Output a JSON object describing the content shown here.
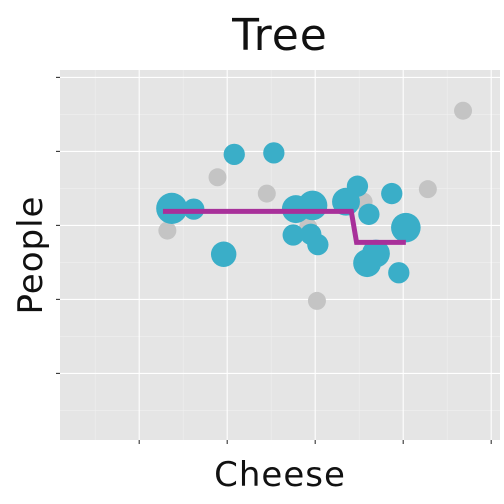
{
  "chart_data": {
    "type": "scatter",
    "title": "Tree",
    "xlabel": "Cheese",
    "ylabel": "People",
    "xlim": [
      -0.9,
      4.1
    ],
    "ylim": [
      -0.9,
      4.1
    ],
    "grid": true,
    "legend": "none",
    "colors": {
      "panel": "#e5e5e5",
      "grid_major": "#ffffff",
      "grid_minor": "#f0f0f0",
      "background_points": "#c4c4c4",
      "highlight_points": "#3aaec8",
      "step_line": "#a8309a",
      "tick": "#333333"
    },
    "series": [
      {
        "role": "background",
        "points": [
          {
            "x": 0.32,
            "y": 1.93,
            "size": 1
          },
          {
            "x": 0.89,
            "y": 2.65,
            "size": 1
          },
          {
            "x": 1.45,
            "y": 2.43,
            "size": 1
          },
          {
            "x": 1.92,
            "y": 1.98,
            "size": 1
          },
          {
            "x": 2.55,
            "y": 2.32,
            "size": 1
          },
          {
            "x": 3.28,
            "y": 2.49,
            "size": 1
          },
          {
            "x": 3.68,
            "y": 3.55,
            "size": 1
          },
          {
            "x": 2.02,
            "y": 0.98,
            "size": 1
          }
        ]
      },
      {
        "role": "highlight",
        "points": [
          {
            "x": 0.37,
            "y": 2.23,
            "size": 3
          },
          {
            "x": 0.62,
            "y": 2.22,
            "size": 1.4
          },
          {
            "x": 1.08,
            "y": 2.96,
            "size": 1.4
          },
          {
            "x": 1.53,
            "y": 2.98,
            "size": 1.4
          },
          {
            "x": 0.96,
            "y": 1.61,
            "size": 2
          },
          {
            "x": 1.78,
            "y": 2.22,
            "size": 2.4
          },
          {
            "x": 1.97,
            "y": 2.27,
            "size": 2.7
          },
          {
            "x": 2.35,
            "y": 2.32,
            "size": 2.4
          },
          {
            "x": 2.48,
            "y": 2.53,
            "size": 1.4
          },
          {
            "x": 2.61,
            "y": 2.15,
            "size": 1.4
          },
          {
            "x": 2.87,
            "y": 2.43,
            "size": 1.4
          },
          {
            "x": 1.75,
            "y": 1.87,
            "size": 1.4
          },
          {
            "x": 1.95,
            "y": 1.88,
            "size": 1.4
          },
          {
            "x": 2.03,
            "y": 1.74,
            "size": 1.4
          },
          {
            "x": 2.69,
            "y": 1.62,
            "size": 2.4
          },
          {
            "x": 2.59,
            "y": 1.49,
            "size": 2.4
          },
          {
            "x": 2.95,
            "y": 1.36,
            "size": 1.4
          },
          {
            "x": 3.03,
            "y": 1.97,
            "size": 2.7
          }
        ]
      }
    ],
    "step_line": [
      {
        "x": 0.27,
        "y": 2.19
      },
      {
        "x": 2.41,
        "y": 2.19
      },
      {
        "x": 2.47,
        "y": 1.77
      },
      {
        "x": 3.03,
        "y": 1.77
      }
    ]
  }
}
